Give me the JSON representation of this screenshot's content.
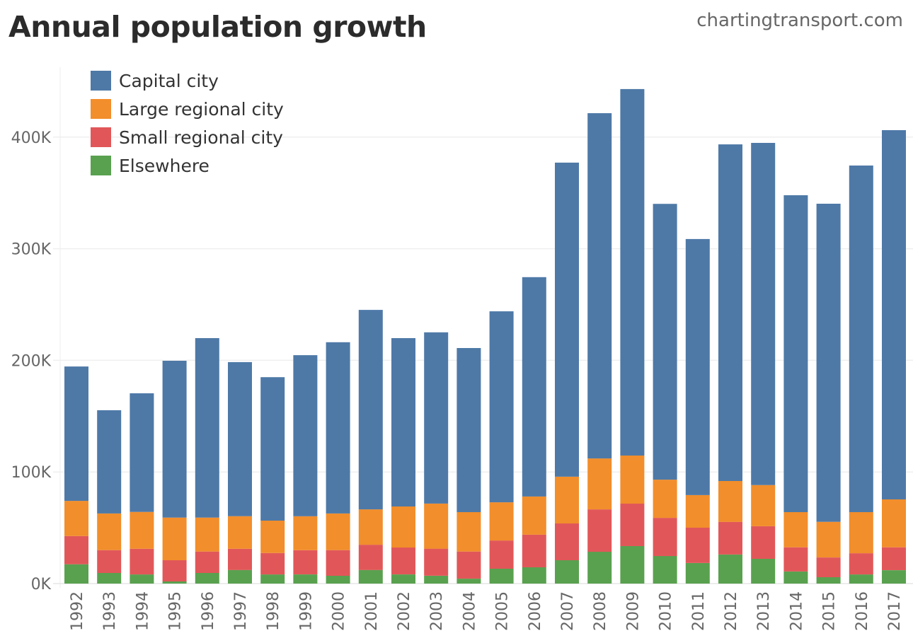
{
  "header": {
    "title": "Annual population growth",
    "watermark": "chartingtransport.com"
  },
  "chart_data": {
    "type": "bar",
    "stacked": true,
    "title": "Annual population growth",
    "xlabel": "",
    "ylabel": "",
    "ylim": [
      0,
      460000
    ],
    "grid": true,
    "legend_position": "top-left",
    "y_ticks": [
      {
        "value": 0,
        "label": "0K"
      },
      {
        "value": 100000,
        "label": "100K"
      },
      {
        "value": 200000,
        "label": "200K"
      },
      {
        "value": 300000,
        "label": "300K"
      },
      {
        "value": 400000,
        "label": "400K"
      }
    ],
    "categories": [
      "1992",
      "1993",
      "1994",
      "1995",
      "1996",
      "1997",
      "1998",
      "1999",
      "2000",
      "2001",
      "2002",
      "2003",
      "2004",
      "2005",
      "2006",
      "2007",
      "2008",
      "2009",
      "2010",
      "2011",
      "2012",
      "2013",
      "2014",
      "2015",
      "2016",
      "2017"
    ],
    "series": [
      {
        "name": "Elsewhere",
        "color": "#59a14f",
        "values": [
          17300,
          9500,
          8200,
          1900,
          9500,
          12200,
          8200,
          8200,
          7000,
          12200,
          8200,
          7000,
          4400,
          13300,
          14600,
          20900,
          28500,
          33600,
          24700,
          18400,
          26000,
          22200,
          10800,
          5700,
          8200,
          12000
        ]
      },
      {
        "name": "Small regional city",
        "color": "#e15759",
        "values": [
          25300,
          20500,
          23000,
          19000,
          19200,
          19000,
          19200,
          21700,
          23000,
          22600,
          24100,
          24300,
          24300,
          25300,
          29200,
          33000,
          38000,
          38000,
          34200,
          31700,
          29300,
          29200,
          21700,
          17700,
          19000,
          20500
        ]
      },
      {
        "name": "Large regional city",
        "color": "#f28e2b",
        "values": [
          31500,
          32800,
          33000,
          38200,
          30400,
          29200,
          29000,
          30400,
          32800,
          31700,
          36800,
          40400,
          35300,
          34200,
          34200,
          41800,
          45600,
          43100,
          34200,
          29200,
          36600,
          36900,
          31500,
          31900,
          36800,
          42900
        ]
      },
      {
        "name": "Capital city",
        "color": "#4e79a7",
        "values": [
          120400,
          92500,
          106300,
          140500,
          160800,
          138000,
          128500,
          144300,
          153400,
          178700,
          150800,
          153400,
          147000,
          171100,
          196500,
          281400,
          309300,
          328300,
          247100,
          229400,
          301600,
          306500,
          283900,
          285000,
          310500,
          330800
        ]
      }
    ],
    "legend": [
      {
        "name": "Capital city",
        "color": "#4e79a7"
      },
      {
        "name": "Large regional city",
        "color": "#f28e2b"
      },
      {
        "name": "Small regional city",
        "color": "#e15759"
      },
      {
        "name": "Elsewhere",
        "color": "#59a14f"
      }
    ]
  }
}
